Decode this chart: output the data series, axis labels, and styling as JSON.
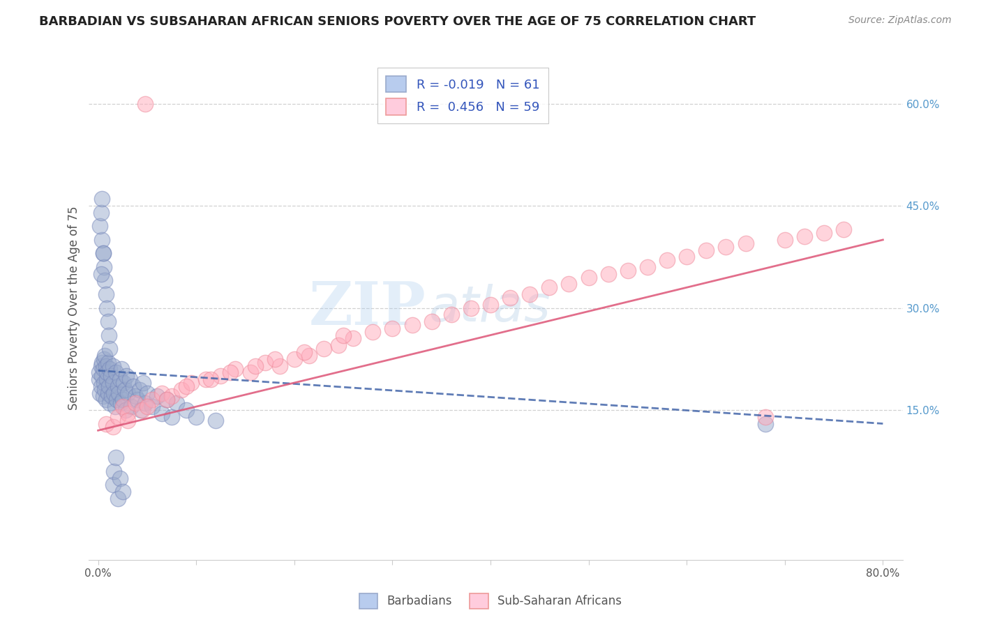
{
  "title": "BARBADIAN VS SUBSAHARAN AFRICAN SENIORS POVERTY OVER THE AGE OF 75 CORRELATION CHART",
  "source": "Source: ZipAtlas.com",
  "ylabel": "Seniors Poverty Over the Age of 75",
  "xlim": [
    -0.01,
    0.82
  ],
  "ylim": [
    -0.07,
    0.67
  ],
  "right_yticks": [
    0.6,
    0.45,
    0.3,
    0.15
  ],
  "right_yticklabels": [
    "60.0%",
    "45.0%",
    "30.0%",
    "15.0%"
  ],
  "legend_r1": "R = -0.019",
  "legend_n1": "N = 61",
  "legend_r2": "R =  0.456",
  "legend_n2": "N = 59",
  "blue_face": "#99aacc",
  "blue_edge": "#7788bb",
  "pink_face": "#ffaabb",
  "pink_edge": "#ee8899",
  "blue_line": "#4466aa",
  "pink_line": "#dd5577",
  "watermark_zip": "ZIP",
  "watermark_atlas": "atlas",
  "grid_color": "#cccccc",
  "title_color": "#222222",
  "source_color": "#888888",
  "label_color": "#555555",
  "tick_color_right": "#5599cc",
  "legend_text_color": "#3355bb",
  "blue_dot_x": [
    0.001,
    0.001,
    0.002,
    0.003,
    0.003,
    0.004,
    0.004,
    0.005,
    0.005,
    0.006,
    0.006,
    0.007,
    0.007,
    0.008,
    0.008,
    0.009,
    0.009,
    0.01,
    0.01,
    0.011,
    0.012,
    0.012,
    0.013,
    0.014,
    0.015,
    0.015,
    0.016,
    0.017,
    0.018,
    0.019,
    0.02,
    0.021,
    0.022,
    0.023,
    0.024,
    0.025,
    0.026,
    0.027,
    0.028,
    0.029,
    0.03,
    0.032,
    0.034,
    0.036,
    0.038,
    0.04,
    0.042,
    0.044,
    0.046,
    0.048,
    0.05,
    0.055,
    0.06,
    0.065,
    0.07,
    0.075,
    0.08,
    0.09,
    0.1,
    0.12,
    0.68
  ],
  "blue_dot_y": [
    0.195,
    0.205,
    0.175,
    0.215,
    0.185,
    0.2,
    0.22,
    0.17,
    0.21,
    0.225,
    0.19,
    0.18,
    0.23,
    0.165,
    0.215,
    0.195,
    0.205,
    0.175,
    0.22,
    0.185,
    0.21,
    0.16,
    0.2,
    0.17,
    0.19,
    0.215,
    0.175,
    0.155,
    0.205,
    0.165,
    0.185,
    0.175,
    0.195,
    0.16,
    0.21,
    0.165,
    0.19,
    0.18,
    0.15,
    0.2,
    0.175,
    0.195,
    0.155,
    0.185,
    0.17,
    0.165,
    0.18,
    0.15,
    0.19,
    0.16,
    0.175,
    0.155,
    0.17,
    0.145,
    0.165,
    0.14,
    0.16,
    0.15,
    0.14,
    0.135,
    0.13
  ],
  "blue_extra_y": [
    0.38,
    0.4,
    0.36,
    0.34,
    0.32,
    0.3,
    0.28,
    0.35,
    0.42,
    0.44,
    0.46,
    0.38,
    0.26,
    0.24,
    0.04,
    0.06,
    0.02,
    0.08,
    0.05,
    0.03
  ],
  "blue_extra_x": [
    0.005,
    0.004,
    0.006,
    0.007,
    0.008,
    0.009,
    0.01,
    0.003,
    0.002,
    0.003,
    0.004,
    0.005,
    0.011,
    0.012,
    0.015,
    0.016,
    0.02,
    0.018,
    0.022,
    0.025
  ],
  "pink_dot_x": [
    0.008,
    0.015,
    0.02,
    0.025,
    0.03,
    0.038,
    0.045,
    0.055,
    0.065,
    0.075,
    0.085,
    0.095,
    0.11,
    0.125,
    0.14,
    0.155,
    0.17,
    0.185,
    0.2,
    0.215,
    0.23,
    0.245,
    0.26,
    0.28,
    0.3,
    0.32,
    0.34,
    0.36,
    0.38,
    0.4,
    0.42,
    0.44,
    0.46,
    0.48,
    0.5,
    0.52,
    0.54,
    0.56,
    0.58,
    0.6,
    0.62,
    0.64,
    0.66,
    0.68,
    0.7,
    0.72,
    0.74,
    0.76,
    0.03,
    0.05,
    0.07,
    0.09,
    0.115,
    0.135,
    0.16,
    0.18,
    0.21,
    0.25,
    0.048
  ],
  "pink_dot_y": [
    0.13,
    0.125,
    0.14,
    0.155,
    0.145,
    0.16,
    0.15,
    0.165,
    0.175,
    0.17,
    0.18,
    0.19,
    0.195,
    0.2,
    0.21,
    0.205,
    0.22,
    0.215,
    0.225,
    0.23,
    0.24,
    0.245,
    0.255,
    0.265,
    0.27,
    0.275,
    0.28,
    0.29,
    0.3,
    0.305,
    0.315,
    0.32,
    0.33,
    0.335,
    0.345,
    0.35,
    0.355,
    0.36,
    0.37,
    0.375,
    0.385,
    0.39,
    0.395,
    0.14,
    0.4,
    0.405,
    0.41,
    0.415,
    0.135,
    0.155,
    0.165,
    0.185,
    0.195,
    0.205,
    0.215,
    0.225,
    0.235,
    0.26,
    0.6
  ],
  "blue_trend_x": [
    0.0,
    0.8
  ],
  "blue_trend_y": [
    0.208,
    0.13
  ],
  "pink_trend_x": [
    0.0,
    0.8
  ],
  "pink_trend_y": [
    0.12,
    0.4
  ]
}
